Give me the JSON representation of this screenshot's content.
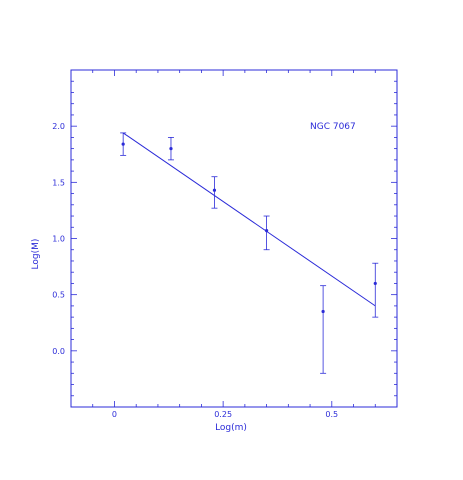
{
  "chart_data": {
    "type": "scatter",
    "annotation": "NGC 7067",
    "xlabel": "Log(m)",
    "ylabel": "Log(M)",
    "xlim": [
      -0.1,
      0.65
    ],
    "ylim": [
      -0.5,
      2.5
    ],
    "xticks": [
      0,
      0.25,
      0.5
    ],
    "xtick_labels": [
      "0",
      "0.25",
      "0.5"
    ],
    "yticks": [
      0,
      0.5,
      1.0,
      1.5,
      2.0
    ],
    "ytick_labels": [
      "0.0",
      "0.5",
      "1.0",
      "1.5",
      "2.0"
    ],
    "grid": false,
    "color": "#2b2bd8",
    "points": [
      {
        "x": 0.02,
        "y": 1.84,
        "yerr_low": 1.74,
        "yerr_high": 1.94
      },
      {
        "x": 0.13,
        "y": 1.8,
        "yerr_low": 1.7,
        "yerr_high": 1.9
      },
      {
        "x": 0.23,
        "y": 1.43,
        "yerr_low": 1.27,
        "yerr_high": 1.55
      },
      {
        "x": 0.35,
        "y": 1.07,
        "yerr_low": 0.9,
        "yerr_high": 1.2
      },
      {
        "x": 0.48,
        "y": 0.35,
        "yerr_low": -0.2,
        "yerr_high": 0.58
      },
      {
        "x": 0.6,
        "y": 0.6,
        "yerr_low": 0.3,
        "yerr_high": 0.78
      }
    ],
    "fit_line": {
      "x": [
        0.02,
        0.6
      ],
      "y": [
        1.94,
        0.4
      ]
    }
  }
}
